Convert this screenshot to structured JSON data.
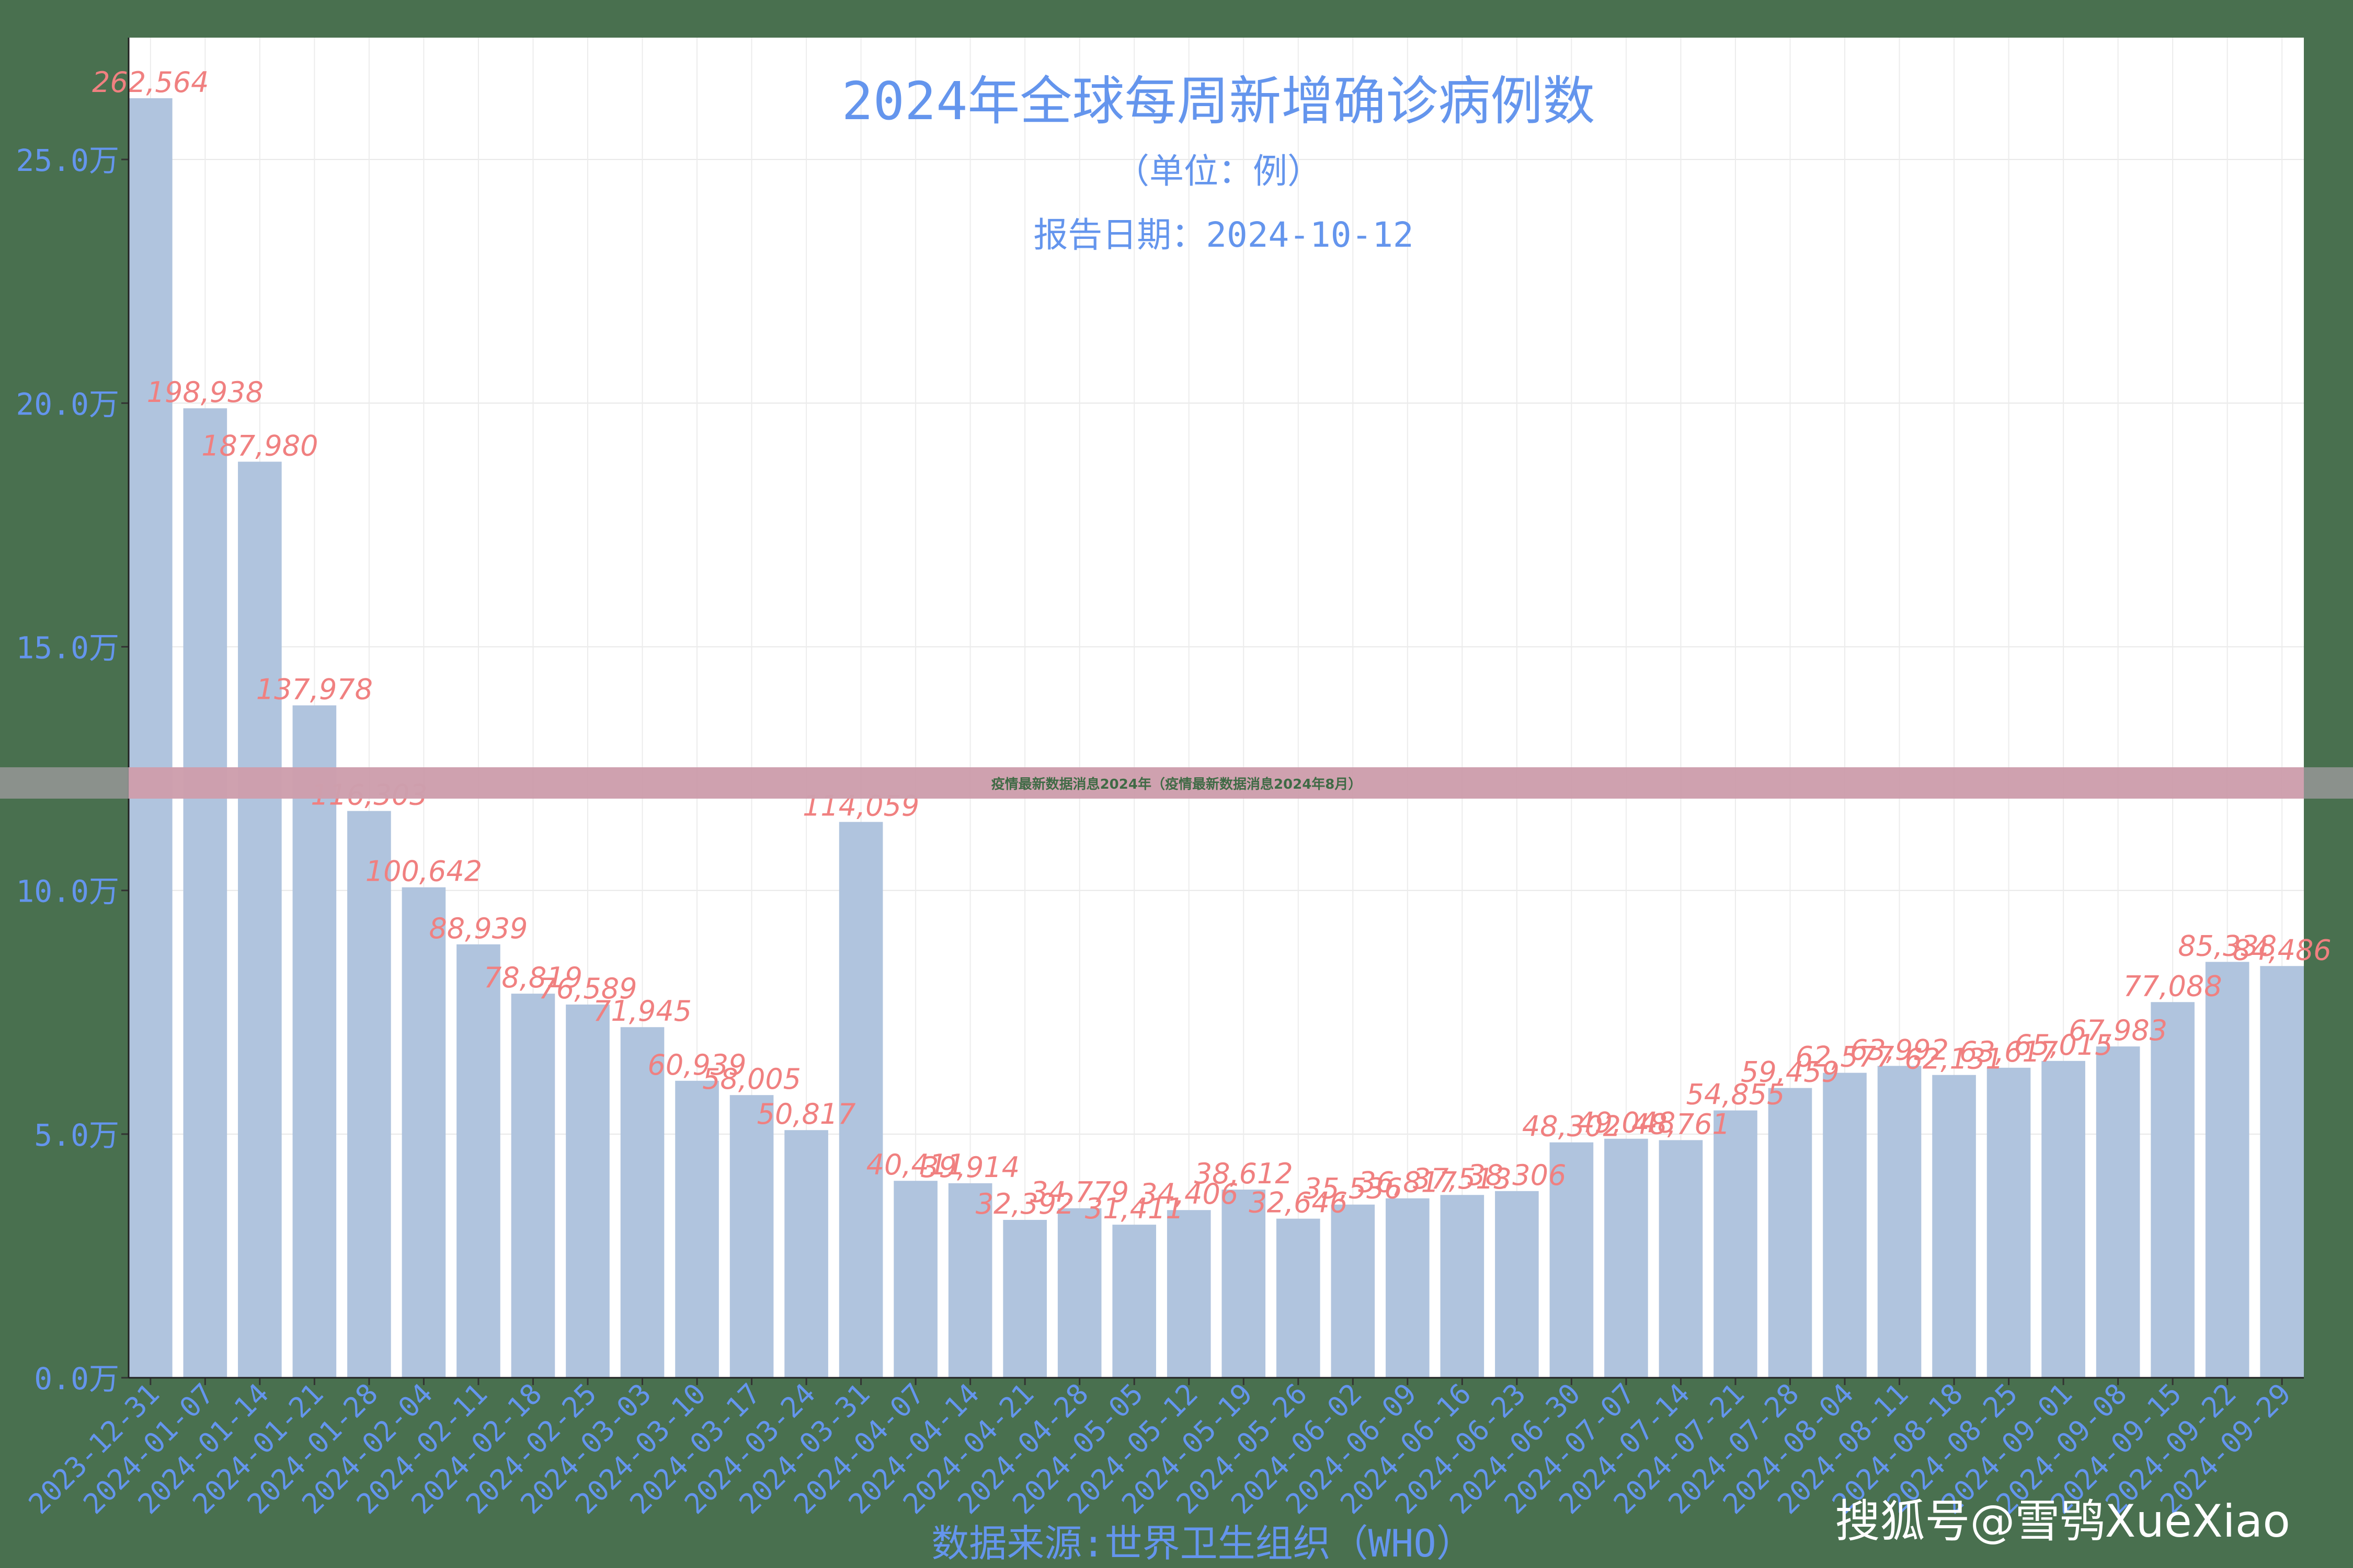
{
  "banner": "疫情最新数据消息2024年（疫情最新数据消息2024年8月）",
  "watermark": "搜狐号@雪鸮XueXiao",
  "colors": {
    "background": "#49704f",
    "plot_bg": "#ffffff",
    "bar": "#b0c4de",
    "label": "#f08080",
    "axis_text": "#6495ed"
  },
  "chart_data": {
    "type": "bar",
    "title": "2024年全球每周新增确诊病例数",
    "subtitle": "（单位：例）",
    "report_date": "报告日期：2024-10-12",
    "xlabel": "数据来源:世界卫生组织（WHO）",
    "ylabel": "",
    "ylim": [
      0,
      275000
    ],
    "yticks": [
      0,
      50000,
      100000,
      150000,
      200000,
      250000
    ],
    "ytick_labels": [
      "0.0万",
      "5.0万",
      "10.0万",
      "15.0万",
      "20.0万",
      "25.0万"
    ],
    "grid": true,
    "categories": [
      "2023-12-31",
      "2024-01-07",
      "2024-01-14",
      "2024-01-21",
      "2024-01-28",
      "2024-02-04",
      "2024-02-11",
      "2024-02-18",
      "2024-02-25",
      "2024-03-03",
      "2024-03-10",
      "2024-03-17",
      "2024-03-24",
      "2024-03-31",
      "2024-04-07",
      "2024-04-14",
      "2024-04-21",
      "2024-04-28",
      "2024-05-05",
      "2024-05-12",
      "2024-05-19",
      "2024-05-26",
      "2024-06-02",
      "2024-06-09",
      "2024-06-16",
      "2024-06-23",
      "2024-06-30",
      "2024-07-07",
      "2024-07-14",
      "2024-07-21",
      "2024-07-28",
      "2024-08-04",
      "2024-08-11",
      "2024-08-18",
      "2024-08-25",
      "2024-09-01",
      "2024-09-08",
      "2024-09-15",
      "2024-09-22",
      "2024-09-29"
    ],
    "values": [
      262564,
      198938,
      187980,
      137978,
      116303,
      100642,
      88939,
      78819,
      76589,
      71945,
      60939,
      58005,
      50817,
      114059,
      40411,
      39914,
      32392,
      34779,
      31411,
      34406,
      38612,
      32646,
      35536,
      36817,
      37513,
      38306,
      48302,
      49048,
      48761,
      54855,
      59459,
      62577,
      63992,
      62131,
      63617,
      65015,
      67983,
      77088,
      85338,
      84486
    ],
    "value_labels": [
      "262,564",
      "198,938",
      "187,980",
      "137,978",
      "116,303",
      "100,642",
      "88,939",
      "78,819",
      "76,589",
      "71,945",
      "60,939",
      "58,005",
      "50,817",
      "114,059",
      "40,411",
      "39,914",
      "32,392",
      "34,779",
      "31,411",
      "34,406",
      "38,612",
      "32,646",
      "35,536",
      "36,817",
      "37,513",
      "38,306",
      "48,302",
      "49,048",
      "48,761",
      "54,855",
      "59,459",
      "62,577",
      "63,992",
      "62,131",
      "63,617",
      "65,015",
      "67,983",
      "77,088",
      "85,338",
      "84,486"
    ]
  }
}
